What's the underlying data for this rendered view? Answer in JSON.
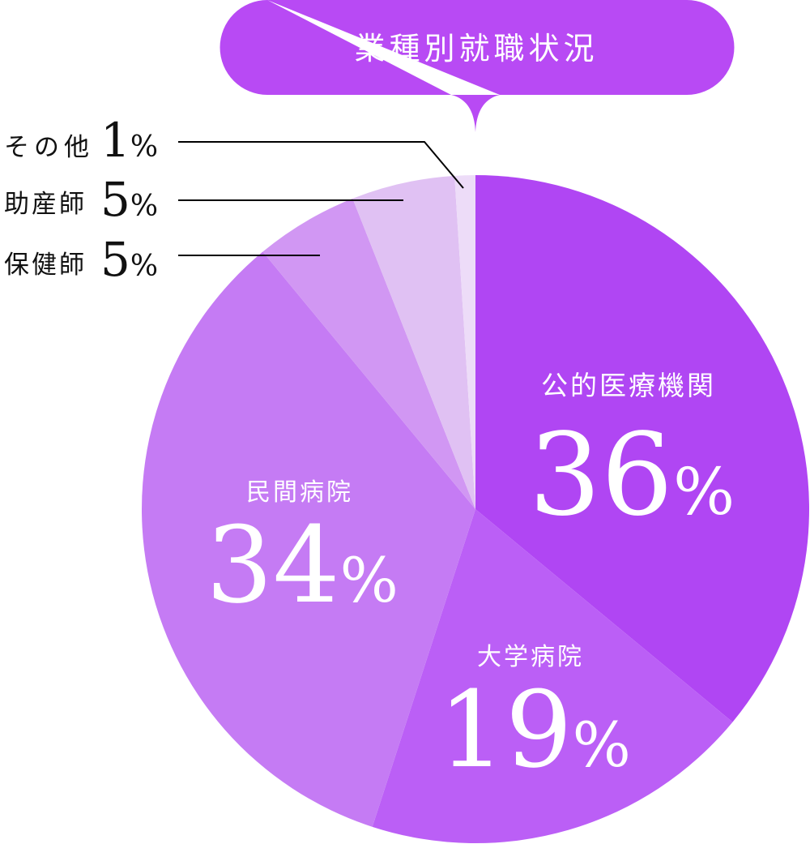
{
  "chart_data": {
    "type": "pie",
    "title": "業種別就職状況",
    "start": "top",
    "direction": "clockwise",
    "slices": [
      {
        "label": "公的医療機関",
        "value": 36,
        "display": "36",
        "color": "#b046f3"
      },
      {
        "label": "大学病院",
        "value": 19,
        "display": "19",
        "color": "#bb5ff6"
      },
      {
        "label": "民間病院",
        "value": 34,
        "display": "34",
        "color": "#c57bf4"
      },
      {
        "label": "保健師",
        "value": 5,
        "display": "5",
        "color": "#d197f3"
      },
      {
        "label": "助産師",
        "value": 5,
        "display": "5",
        "color": "#e0c1f3"
      },
      {
        "label": "その他",
        "value": 1,
        "display": "1",
        "color": "#eddcf8"
      }
    ],
    "unit": "%"
  },
  "colors": {
    "title_bubble": "#b84af4",
    "leader_line": "#000000",
    "label_inside": "#ffffff",
    "label_outside": "#111111"
  }
}
